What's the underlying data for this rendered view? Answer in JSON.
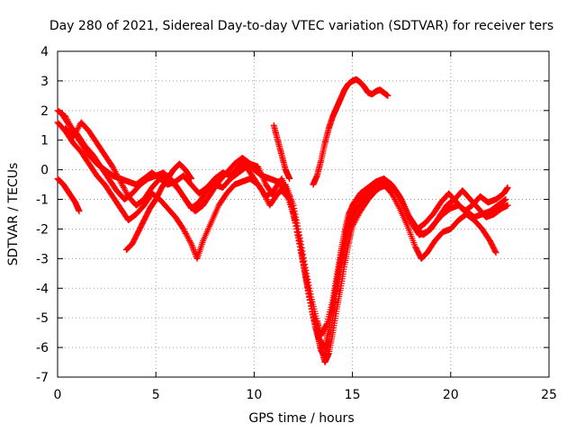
{
  "chart_data": {
    "type": "scatter",
    "title": "Day 280 of 2021, Sidereal Day-to-day VTEC variation (SDTVAR) for receiver ters",
    "xlabel": "GPS time / hours",
    "ylabel": "SDTVAR / TECUs",
    "xlim": [
      0,
      25
    ],
    "ylim": [
      -7,
      4
    ],
    "xticks": [
      0,
      5,
      10,
      15,
      20,
      25
    ],
    "yticks": [
      -7,
      -6,
      -5,
      -4,
      -3,
      -2,
      -1,
      0,
      1,
      2,
      3,
      4
    ],
    "grid": true,
    "legend": "none",
    "marker": "+",
    "color": "#ff0000",
    "series": [
      {
        "points": [
          [
            0,
            2.0
          ],
          [
            0.4,
            1.8
          ],
          [
            0.8,
            1.3
          ],
          [
            1.2,
            0.9
          ],
          [
            1.6,
            0.5
          ],
          [
            2.0,
            0.2
          ],
          [
            2.4,
            0.0
          ],
          [
            2.8,
            -0.2
          ],
          [
            3.2,
            -0.3
          ],
          [
            3.6,
            -0.4
          ],
          [
            4.0,
            -0.5
          ],
          [
            4.4,
            -0.3
          ],
          [
            4.8,
            -0.1
          ],
          [
            5.2,
            -0.3
          ],
          [
            5.6,
            -0.5
          ],
          [
            6.0,
            -0.4
          ],
          [
            6.4,
            -0.2
          ],
          [
            6.8,
            -0.5
          ],
          [
            7.2,
            -0.8
          ],
          [
            7.6,
            -0.6
          ],
          [
            8.0,
            -0.3
          ],
          [
            8.4,
            -0.1
          ],
          [
            8.8,
            -0.2
          ],
          [
            9.2,
            0.1
          ],
          [
            9.6,
            0.3
          ],
          [
            10.0,
            0.0
          ],
          [
            10.4,
            -0.2
          ],
          [
            10.8,
            -0.3
          ],
          [
            11.2,
            -0.4
          ],
          [
            11.6,
            -0.7
          ],
          [
            12.0,
            -1.5
          ],
          [
            12.3,
            -2.5
          ],
          [
            12.6,
            -3.5
          ],
          [
            12.9,
            -4.6
          ],
          [
            13.2,
            -5.5
          ],
          [
            13.4,
            -6.1
          ],
          [
            13.6,
            -6.3
          ],
          [
            13.8,
            -5.8
          ],
          [
            14.0,
            -5.0
          ],
          [
            14.2,
            -4.1
          ],
          [
            14.4,
            -3.3
          ],
          [
            14.6,
            -2.6
          ],
          [
            14.8,
            -2.0
          ],
          [
            15.0,
            -1.6
          ],
          [
            15.2,
            -1.3
          ],
          [
            15.6,
            -1.0
          ],
          [
            16.0,
            -0.8
          ],
          [
            16.4,
            -0.6
          ],
          [
            16.8,
            -0.5
          ],
          [
            17.2,
            -0.7
          ],
          [
            17.6,
            -1.2
          ],
          [
            18.0,
            -1.8
          ],
          [
            18.4,
            -2.2
          ],
          [
            18.8,
            -2.1
          ],
          [
            19.2,
            -1.8
          ],
          [
            19.6,
            -1.5
          ],
          [
            20.0,
            -1.3
          ],
          [
            20.4,
            -1.2
          ],
          [
            20.8,
            -1.4
          ],
          [
            21.2,
            -1.6
          ],
          [
            21.6,
            -1.5
          ],
          [
            22.0,
            -1.4
          ],
          [
            22.4,
            -1.2
          ],
          [
            22.8,
            -1.0
          ]
        ]
      },
      {
        "points": [
          [
            0,
            1.6
          ],
          [
            0.4,
            1.3
          ],
          [
            0.8,
            0.9
          ],
          [
            1.2,
            0.6
          ],
          [
            1.6,
            0.2
          ],
          [
            2.0,
            -0.2
          ],
          [
            2.4,
            -0.5
          ],
          [
            2.8,
            -0.9
          ],
          [
            3.2,
            -1.3
          ],
          [
            3.6,
            -1.7
          ],
          [
            4.0,
            -1.5
          ],
          [
            4.4,
            -1.2
          ],
          [
            4.8,
            -0.8
          ],
          [
            5.2,
            -1.0
          ],
          [
            5.6,
            -1.3
          ],
          [
            6.0,
            -1.6
          ],
          [
            6.4,
            -2.0
          ],
          [
            6.8,
            -2.5
          ],
          [
            7.1,
            -3.0
          ],
          [
            7.4,
            -2.4
          ],
          [
            7.8,
            -1.8
          ],
          [
            8.2,
            -1.2
          ],
          [
            8.6,
            -0.8
          ],
          [
            9.0,
            -0.5
          ],
          [
            9.4,
            -0.4
          ],
          [
            9.8,
            -0.3
          ],
          [
            10.2,
            -0.5
          ],
          [
            10.6,
            -0.9
          ],
          [
            11.0,
            -0.7
          ],
          [
            11.4,
            -0.3
          ],
          [
            11.8,
            -0.9
          ],
          [
            12.2,
            -2.0
          ],
          [
            12.5,
            -3.2
          ],
          [
            12.8,
            -4.3
          ],
          [
            13.1,
            -5.3
          ],
          [
            13.4,
            -6.0
          ],
          [
            13.6,
            -6.5
          ],
          [
            13.8,
            -6.2
          ],
          [
            14.0,
            -5.5
          ],
          [
            14.2,
            -4.7
          ],
          [
            14.4,
            -4.0
          ],
          [
            14.6,
            -3.2
          ],
          [
            14.8,
            -2.5
          ],
          [
            15.0,
            -1.9
          ],
          [
            15.4,
            -1.4
          ],
          [
            15.8,
            -1.0
          ],
          [
            16.2,
            -0.7
          ],
          [
            16.6,
            -0.5
          ],
          [
            17.0,
            -0.8
          ],
          [
            17.4,
            -1.3
          ],
          [
            17.8,
            -1.9
          ],
          [
            18.2,
            -2.6
          ],
          [
            18.5,
            -3.0
          ],
          [
            18.8,
            -2.8
          ],
          [
            19.2,
            -2.4
          ],
          [
            19.6,
            -2.1
          ],
          [
            20.0,
            -2.0
          ],
          [
            20.4,
            -1.7
          ],
          [
            20.8,
            -1.5
          ],
          [
            21.2,
            -1.7
          ],
          [
            21.6,
            -2.0
          ],
          [
            22.0,
            -2.4
          ],
          [
            22.3,
            -2.8
          ]
        ]
      },
      {
        "points": [
          [
            0.2,
            1.9
          ],
          [
            0.6,
            1.5
          ],
          [
            1.0,
            1.2
          ],
          [
            1.4,
            0.8
          ],
          [
            1.8,
            0.5
          ],
          [
            2.2,
            0.1
          ],
          [
            2.6,
            -0.3
          ],
          [
            3.0,
            -0.7
          ],
          [
            3.4,
            -1.0
          ],
          [
            3.8,
            -0.8
          ],
          [
            4.2,
            -0.5
          ],
          [
            4.6,
            -0.3
          ],
          [
            5.0,
            -0.2
          ],
          [
            5.4,
            -0.1
          ],
          [
            5.8,
            -0.4
          ],
          [
            6.2,
            -0.7
          ],
          [
            6.6,
            -1.1
          ],
          [
            7.0,
            -1.4
          ],
          [
            7.4,
            -1.2
          ],
          [
            7.8,
            -0.8
          ],
          [
            8.2,
            -0.4
          ],
          [
            8.6,
            -0.1
          ],
          [
            9.0,
            0.2
          ],
          [
            9.4,
            0.4
          ],
          [
            9.8,
            0.2
          ],
          [
            10.2,
            0.1
          ],
          [
            10.6,
            -0.5
          ],
          [
            11.0,
            -0.9
          ],
          [
            11.4,
            -0.7
          ],
          [
            11.8,
            -1.0
          ],
          [
            12.1,
            -1.8
          ],
          [
            12.4,
            -2.8
          ],
          [
            12.7,
            -3.9
          ],
          [
            13.0,
            -4.9
          ],
          [
            13.3,
            -5.7
          ],
          [
            13.6,
            -6.0
          ],
          [
            13.8,
            -5.4
          ],
          [
            14.0,
            -4.6
          ],
          [
            14.2,
            -3.8
          ],
          [
            14.4,
            -3.0
          ],
          [
            14.6,
            -2.3
          ],
          [
            14.8,
            -1.7
          ],
          [
            15.0,
            -1.2
          ],
          [
            15.4,
            -0.8
          ],
          [
            15.8,
            -0.6
          ],
          [
            16.2,
            -0.4
          ],
          [
            16.6,
            -0.3
          ],
          [
            17.0,
            -0.5
          ],
          [
            17.4,
            -0.9
          ],
          [
            17.8,
            -1.5
          ],
          [
            18.2,
            -1.9
          ],
          [
            18.6,
            -2.2
          ],
          [
            19.0,
            -2.0
          ],
          [
            19.4,
            -1.6
          ],
          [
            19.8,
            -1.2
          ],
          [
            20.2,
            -1.0
          ],
          [
            20.6,
            -0.7
          ],
          [
            21.0,
            -1.0
          ],
          [
            21.4,
            -1.3
          ],
          [
            21.8,
            -1.6
          ],
          [
            22.2,
            -1.5
          ],
          [
            22.6,
            -1.3
          ],
          [
            22.9,
            -1.2
          ]
        ]
      },
      {
        "points": [
          [
            0.4,
            1.4
          ],
          [
            0.8,
            1.1
          ],
          [
            1.2,
            1.6
          ],
          [
            1.6,
            1.3
          ],
          [
            2.0,
            0.9
          ],
          [
            2.4,
            0.5
          ],
          [
            2.8,
            0.1
          ],
          [
            3.2,
            -0.4
          ],
          [
            3.6,
            -0.9
          ],
          [
            4.0,
            -1.2
          ],
          [
            4.4,
            -1.0
          ],
          [
            4.8,
            -0.6
          ],
          [
            5.2,
            -0.3
          ],
          [
            5.6,
            -0.2
          ],
          [
            6.0,
            -0.5
          ],
          [
            6.4,
            -0.9
          ],
          [
            6.8,
            -1.3
          ],
          [
            7.2,
            -1.1
          ],
          [
            7.6,
            -0.7
          ],
          [
            8.0,
            -0.5
          ],
          [
            8.4,
            -0.6
          ],
          [
            8.8,
            -0.3
          ],
          [
            9.2,
            -0.1
          ],
          [
            9.6,
            0.1
          ],
          [
            10.0,
            -0.3
          ],
          [
            10.4,
            -0.7
          ],
          [
            10.8,
            -1.2
          ],
          [
            11.2,
            -0.8
          ],
          [
            11.6,
            -0.5
          ],
          [
            12.0,
            -1.2
          ],
          [
            12.3,
            -2.2
          ],
          [
            12.6,
            -3.3
          ],
          [
            12.9,
            -4.3
          ],
          [
            13.2,
            -5.1
          ],
          [
            13.4,
            -5.6
          ],
          [
            13.7,
            -5.2
          ],
          [
            14.0,
            -4.4
          ],
          [
            14.2,
            -3.6
          ],
          [
            14.4,
            -2.8
          ],
          [
            14.6,
            -2.1
          ],
          [
            14.8,
            -1.5
          ],
          [
            15.1,
            -1.1
          ],
          [
            15.5,
            -0.9
          ],
          [
            15.9,
            -0.7
          ],
          [
            16.3,
            -0.5
          ],
          [
            16.7,
            -0.4
          ],
          [
            17.1,
            -0.6
          ],
          [
            17.5,
            -1.0
          ],
          [
            17.9,
            -1.6
          ],
          [
            18.3,
            -2.0
          ],
          [
            18.7,
            -1.8
          ],
          [
            19.1,
            -1.5
          ],
          [
            19.5,
            -1.1
          ],
          [
            19.9,
            -0.8
          ],
          [
            20.3,
            -1.1
          ],
          [
            20.7,
            -1.4
          ],
          [
            21.1,
            -1.2
          ],
          [
            21.5,
            -0.9
          ],
          [
            21.9,
            -1.1
          ],
          [
            22.3,
            -1.0
          ],
          [
            22.7,
            -0.8
          ],
          [
            22.9,
            -0.6
          ]
        ]
      },
      {
        "points": [
          [
            0,
            -0.3
          ],
          [
            0.3,
            -0.5
          ],
          [
            0.6,
            -0.8
          ],
          [
            0.9,
            -1.1
          ],
          [
            1.1,
            -1.4
          ]
        ]
      },
      {
        "points": [
          [
            3.5,
            -2.7
          ],
          [
            3.8,
            -2.5
          ],
          [
            4.1,
            -2.1
          ],
          [
            4.4,
            -1.7
          ],
          [
            4.7,
            -1.3
          ],
          [
            5.0,
            -1.0
          ],
          [
            5.3,
            -0.6
          ],
          [
            5.6,
            -0.3
          ],
          [
            5.9,
            0.0
          ],
          [
            6.2,
            0.2
          ],
          [
            6.5,
            0.0
          ],
          [
            6.8,
            -0.3
          ]
        ]
      },
      {
        "points": [
          [
            11.0,
            1.5
          ],
          [
            11.2,
            1.0
          ],
          [
            11.4,
            0.5
          ],
          [
            11.6,
            0.0
          ],
          [
            11.8,
            -0.3
          ]
        ]
      },
      {
        "points": [
          [
            13.0,
            -0.5
          ],
          [
            13.2,
            -0.2
          ],
          [
            13.4,
            0.3
          ],
          [
            13.6,
            0.9
          ],
          [
            13.8,
            1.4
          ],
          [
            14.0,
            1.8
          ],
          [
            14.2,
            2.1
          ],
          [
            14.4,
            2.4
          ],
          [
            14.6,
            2.7
          ],
          [
            14.8,
            2.9
          ],
          [
            15.0,
            3.0
          ],
          [
            15.2,
            3.05
          ],
          [
            15.4,
            2.95
          ],
          [
            15.6,
            2.8
          ],
          [
            15.8,
            2.6
          ],
          [
            16.0,
            2.55
          ],
          [
            16.2,
            2.65
          ],
          [
            16.4,
            2.7
          ],
          [
            16.6,
            2.6
          ],
          [
            16.8,
            2.5
          ]
        ]
      }
    ]
  }
}
